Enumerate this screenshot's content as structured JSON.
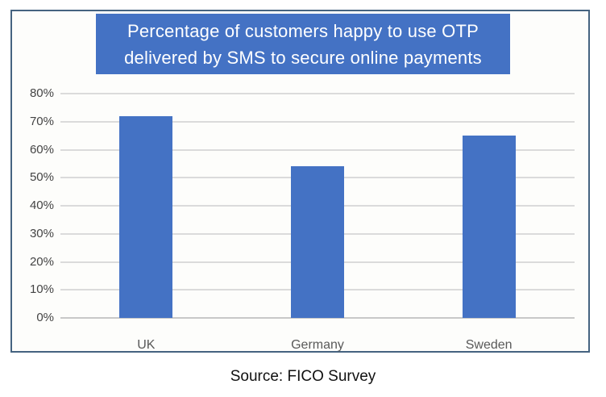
{
  "frame": {
    "border_color": "#456380",
    "background": "#FDFDFB"
  },
  "title": {
    "lines": [
      "Percentage of customers happy to use OTP",
      "delivered by SMS to secure online payments"
    ],
    "bg_color": "#4472C4",
    "text_color": "#FFFFFF"
  },
  "source": {
    "text": "Source: FICO Survey"
  },
  "chart_data": {
    "type": "bar",
    "title": "Percentage of customers happy to use OTP delivered by SMS to secure online payments",
    "categories": [
      "UK",
      "Germany",
      "Sweden"
    ],
    "values": [
      72,
      54,
      65
    ],
    "xlabel": "",
    "ylabel": "",
    "ylim": [
      0,
      80
    ],
    "grid": true,
    "legend": false,
    "y_ticks": [
      {
        "value": 0,
        "label": "0%"
      },
      {
        "value": 10,
        "label": "10%"
      },
      {
        "value": 20,
        "label": "20%"
      },
      {
        "value": 30,
        "label": "30%"
      },
      {
        "value": 40,
        "label": "40%"
      },
      {
        "value": 50,
        "label": "50%"
      },
      {
        "value": 60,
        "label": "60%"
      },
      {
        "value": 70,
        "label": "70%"
      },
      {
        "value": 80,
        "label": "80%"
      }
    ],
    "bar_color": "#4472C4",
    "gridline_color": "#DBDBDB",
    "axis_line_color": "#C8C8C8",
    "tick_label_color": "#444444",
    "category_label_color": "#595959"
  }
}
